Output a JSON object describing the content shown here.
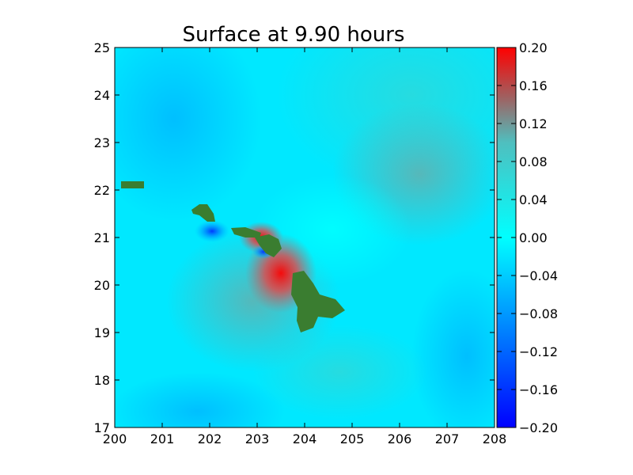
{
  "chart_data": {
    "type": "heatmap",
    "title": "Surface at 9.90 hours",
    "xlabel": "",
    "ylabel": "",
    "xlim": [
      200,
      208
    ],
    "ylim": [
      17,
      25
    ],
    "x_ticks": [
      "200",
      "201",
      "202",
      "203",
      "204",
      "205",
      "206",
      "207",
      "208"
    ],
    "y_ticks": [
      "17",
      "18",
      "19",
      "20",
      "21",
      "22",
      "23",
      "24",
      "25"
    ],
    "colorbar": {
      "range": [
        -0.2,
        0.2
      ],
      "ticks": [
        "0.20",
        "0.16",
        "0.12",
        "0.08",
        "0.04",
        "0.00",
        "−0.04",
        "−0.08",
        "−0.12",
        "−0.16",
        "−0.20"
      ],
      "colors": [
        "#0000ff",
        "#00ffff",
        "#888888",
        "#ff0000"
      ]
    },
    "land_color": "#3a7d30",
    "islands": [
      {
        "name": "Kauai",
        "lon": 200.5,
        "lat": 22.1
      },
      {
        "name": "Oahu",
        "lon": 202.0,
        "lat": 21.5
      },
      {
        "name": "Molokai",
        "lon": 203.0,
        "lat": 21.1
      },
      {
        "name": "Maui",
        "lon": 203.7,
        "lat": 20.8
      },
      {
        "name": "Hawaii",
        "lon": 204.5,
        "lat": 19.6
      }
    ]
  }
}
